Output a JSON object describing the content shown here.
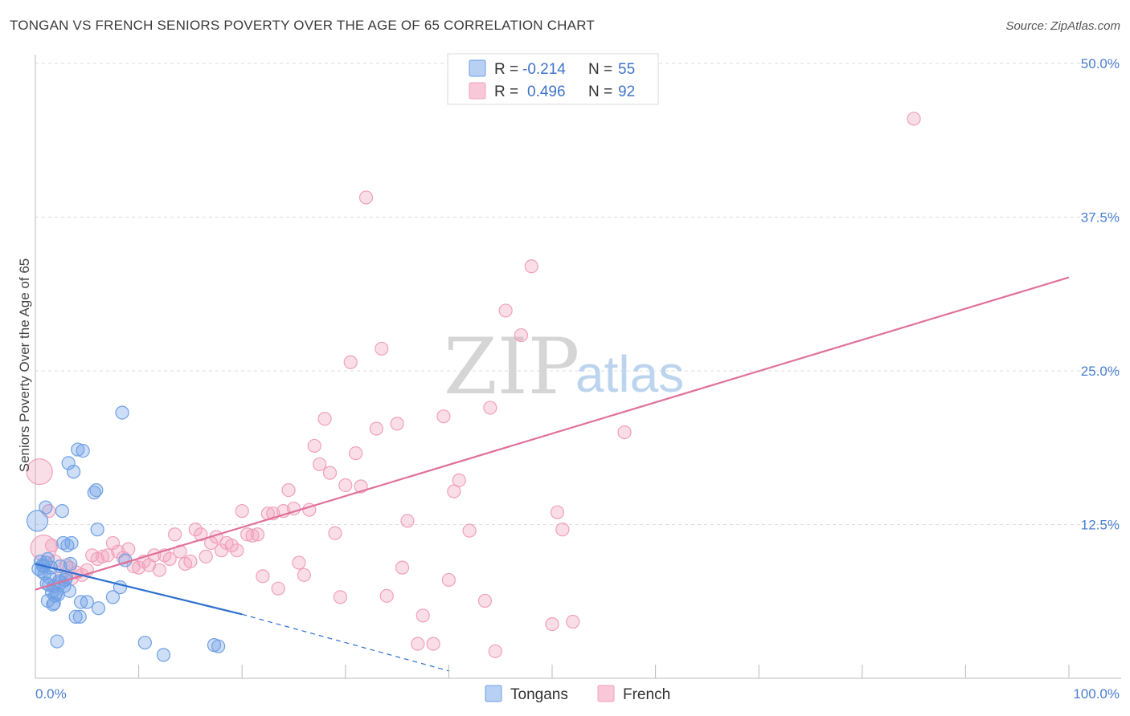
{
  "title": "TONGAN VS FRENCH SENIORS POVERTY OVER THE AGE OF 65 CORRELATION CHART",
  "source": "Source: ZipAtlas.com",
  "watermark": {
    "zip": "ZIP",
    "atlas": "atlas"
  },
  "legend_top": [
    {
      "r_label": "R =",
      "r_value": "-0.214",
      "n_label": "N =",
      "n_value": "55",
      "color": "#6fa0e4"
    },
    {
      "r_label": "R =",
      "r_value": "0.496",
      "n_label": "N =",
      "n_value": "92",
      "color": "#f0a0bb"
    }
  ],
  "legend_bottom": [
    "Tongans",
    "French"
  ],
  "chart_data": {
    "type": "scatter",
    "title": "TONGAN VS FRENCH SENIORS POVERTY OVER THE AGE OF 65 CORRELATION CHART",
    "xlabel": "",
    "ylabel": "Seniors Poverty Over the Age of 65",
    "xlim": [
      0,
      100
    ],
    "ylim": [
      0,
      50
    ],
    "y_ticks": [
      "12.5%",
      "25.0%",
      "37.5%",
      "50.0%"
    ],
    "y_tick_values": [
      12.5,
      25.0,
      37.5,
      50.0
    ],
    "x_tick_labels": [
      "0.0%",
      "100.0%"
    ],
    "x_tick_label_values": [
      0,
      100
    ],
    "grid": true,
    "legend_position": "top-center",
    "series": [
      {
        "name": "Tongans",
        "color": "#6fa0e4",
        "line_color": "#2d6fd0",
        "trend": {
          "x": [
            0,
            20
          ],
          "y": [
            9.3,
            5.2
          ],
          "dashed_to": [
            40,
            0.6
          ]
        },
        "points": [
          [
            0.2,
            12.8
          ],
          [
            0.5,
            9.5
          ],
          [
            0.6,
            8.7
          ],
          [
            0.8,
            9.1
          ],
          [
            0.9,
            8.5
          ],
          [
            1.0,
            9.4
          ],
          [
            1.1,
            7.7
          ],
          [
            1.2,
            6.3
          ],
          [
            1.3,
            7.6
          ],
          [
            1.4,
            8.2
          ],
          [
            1.5,
            9.0
          ],
          [
            1.6,
            7.0
          ],
          [
            1.7,
            6.0
          ],
          [
            1.8,
            7.5
          ],
          [
            1.9,
            6.7
          ],
          [
            2.0,
            6.9
          ],
          [
            2.1,
            3.0
          ],
          [
            2.2,
            6.8
          ],
          [
            2.3,
            7.9
          ],
          [
            2.4,
            9.1
          ],
          [
            2.5,
            7.8
          ],
          [
            2.6,
            13.6
          ],
          [
            2.7,
            11.0
          ],
          [
            2.8,
            7.5
          ],
          [
            3.0,
            8.2
          ],
          [
            3.1,
            10.8
          ],
          [
            3.2,
            17.5
          ],
          [
            3.3,
            7.1
          ],
          [
            3.4,
            9.3
          ],
          [
            3.5,
            11.0
          ],
          [
            3.7,
            16.8
          ],
          [
            3.9,
            5.0
          ],
          [
            4.1,
            18.6
          ],
          [
            4.3,
            5.0
          ],
          [
            4.4,
            6.2
          ],
          [
            4.6,
            18.5
          ],
          [
            5.0,
            6.2
          ],
          [
            5.7,
            15.1
          ],
          [
            5.9,
            15.3
          ],
          [
            6.0,
            12.1
          ],
          [
            6.1,
            5.7
          ],
          [
            7.5,
            6.6
          ],
          [
            8.2,
            7.4
          ],
          [
            8.4,
            21.6
          ],
          [
            8.7,
            9.6
          ],
          [
            10.6,
            2.9
          ],
          [
            12.4,
            1.9
          ],
          [
            17.3,
            2.7
          ],
          [
            17.7,
            2.6
          ],
          [
            0.3,
            8.9
          ],
          [
            0.7,
            9.2
          ],
          [
            1.0,
            13.9
          ],
          [
            1.8,
            6.1
          ],
          [
            2.9,
            8.0
          ],
          [
            1.2,
            9.7
          ]
        ]
      },
      {
        "name": "French",
        "color": "#f0a0bb",
        "line_color": "#e0709a",
        "trend": {
          "x": [
            0,
            100
          ],
          "y": [
            7.2,
            32.6
          ]
        },
        "points": [
          [
            0.4,
            16.8
          ],
          [
            1.3,
            13.6
          ],
          [
            1.6,
            10.8
          ],
          [
            1.9,
            9.5
          ],
          [
            2.5,
            8.2
          ],
          [
            3.0,
            9.2
          ],
          [
            3.3,
            9.0
          ],
          [
            3.5,
            8.1
          ],
          [
            4.0,
            8.6
          ],
          [
            4.5,
            8.4
          ],
          [
            5.0,
            8.8
          ],
          [
            5.5,
            10.0
          ],
          [
            6.0,
            9.7
          ],
          [
            6.5,
            9.9
          ],
          [
            7.0,
            10.0
          ],
          [
            7.5,
            11.0
          ],
          [
            8.0,
            10.3
          ],
          [
            8.5,
            9.8
          ],
          [
            9.0,
            10.5
          ],
          [
            9.5,
            9.1
          ],
          [
            10.0,
            9.0
          ],
          [
            10.5,
            9.5
          ],
          [
            11.0,
            9.2
          ],
          [
            11.5,
            10.0
          ],
          [
            12.0,
            8.8
          ],
          [
            12.5,
            10.0
          ],
          [
            13.0,
            9.7
          ],
          [
            13.5,
            11.7
          ],
          [
            14.0,
            10.3
          ],
          [
            14.5,
            9.3
          ],
          [
            15.0,
            9.5
          ],
          [
            15.5,
            12.1
          ],
          [
            16.0,
            11.7
          ],
          [
            16.5,
            9.9
          ],
          [
            17.0,
            11.0
          ],
          [
            17.5,
            11.5
          ],
          [
            18.0,
            10.4
          ],
          [
            18.5,
            11.0
          ],
          [
            19.0,
            10.8
          ],
          [
            19.5,
            10.4
          ],
          [
            20.0,
            13.6
          ],
          [
            20.5,
            11.7
          ],
          [
            21.0,
            11.6
          ],
          [
            21.5,
            11.7
          ],
          [
            22.0,
            8.3
          ],
          [
            22.5,
            13.4
          ],
          [
            23.0,
            13.4
          ],
          [
            23.5,
            7.3
          ],
          [
            24.0,
            13.6
          ],
          [
            24.5,
            15.3
          ],
          [
            25.0,
            13.8
          ],
          [
            25.5,
            9.4
          ],
          [
            26.0,
            8.4
          ],
          [
            26.5,
            13.7
          ],
          [
            27.0,
            18.9
          ],
          [
            27.5,
            17.4
          ],
          [
            28.0,
            21.1
          ],
          [
            28.5,
            16.7
          ],
          [
            29.0,
            11.8
          ],
          [
            29.5,
            6.6
          ],
          [
            30.0,
            15.7
          ],
          [
            30.5,
            25.7
          ],
          [
            31.0,
            18.3
          ],
          [
            31.5,
            15.6
          ],
          [
            32.0,
            39.1
          ],
          [
            33.0,
            20.3
          ],
          [
            33.5,
            26.8
          ],
          [
            34.0,
            6.7
          ],
          [
            35.0,
            20.7
          ],
          [
            35.5,
            9.0
          ],
          [
            36.0,
            12.8
          ],
          [
            37.0,
            2.8
          ],
          [
            37.5,
            5.1
          ],
          [
            38.5,
            2.8
          ],
          [
            39.5,
            21.3
          ],
          [
            40.0,
            8.0
          ],
          [
            40.5,
            15.2
          ],
          [
            41.0,
            16.1
          ],
          [
            42.0,
            12.0
          ],
          [
            43.5,
            6.3
          ],
          [
            44.0,
            22.0
          ],
          [
            44.5,
            2.2
          ],
          [
            45.5,
            29.9
          ],
          [
            47.0,
            27.9
          ],
          [
            48.0,
            33.5
          ],
          [
            50.0,
            4.4
          ],
          [
            50.5,
            13.5
          ],
          [
            51.0,
            12.1
          ],
          [
            52.0,
            4.6
          ],
          [
            57.0,
            20.0
          ],
          [
            85.0,
            45.5
          ],
          [
            0.8,
            10.6
          ]
        ]
      }
    ]
  }
}
